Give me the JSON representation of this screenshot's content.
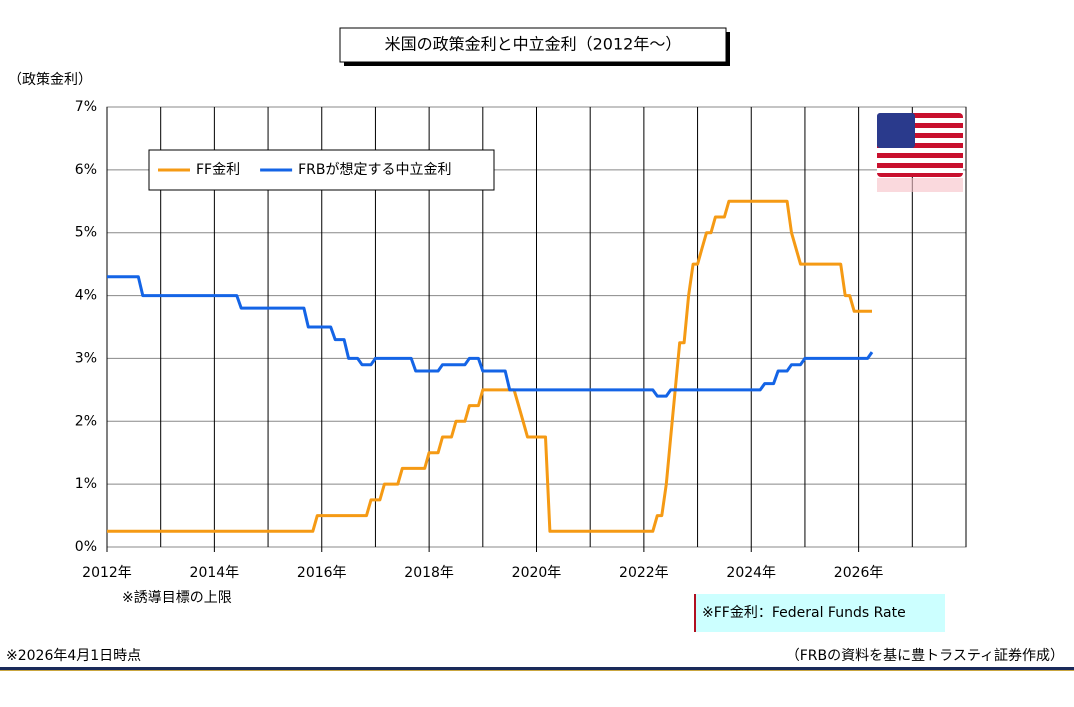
{
  "chart_data": {
    "type": "line",
    "title": "米国の政策金利と中立金利（2012年～）",
    "y_label": "（政策金利）",
    "note_below_axis": "※誘導目標の上限",
    "definition_note": "※FF金利：Federal Funds Rate",
    "footer_left": "※2026年4月1日時点",
    "footer_right": "（FRBの資料を基に豊トラスティ証券作成）",
    "xlim": [
      2012,
      2028
    ],
    "xticks": [
      {
        "value": 2012,
        "label": "2012年"
      },
      {
        "value": 2014,
        "label": "2014年"
      },
      {
        "value": 2016,
        "label": "2016年"
      },
      {
        "value": 2018,
        "label": "2018年"
      },
      {
        "value": 2020,
        "label": "2020年"
      },
      {
        "value": 2022,
        "label": "2022年"
      },
      {
        "value": 2024,
        "label": "2024年"
      },
      {
        "value": 2026,
        "label": "2026年"
      }
    ],
    "x_minor_ticks": [
      2013,
      2015,
      2017,
      2019,
      2021,
      2023,
      2025,
      2027,
      2028
    ],
    "ylim": [
      0,
      7
    ],
    "yticks": [
      {
        "value": 0,
        "label": "0%"
      },
      {
        "value": 1,
        "label": "1%"
      },
      {
        "value": 2,
        "label": "2%"
      },
      {
        "value": 3,
        "label": "3%"
      },
      {
        "value": 4,
        "label": "4%"
      },
      {
        "value": 5,
        "label": "5%"
      },
      {
        "value": 6,
        "label": "6%"
      },
      {
        "value": 7,
        "label": "7%"
      }
    ],
    "grid": true,
    "legend_position": "upper left",
    "series": [
      {
        "name": "FF金利",
        "color": "#f59a14",
        "x": [
          2012.0,
          2015.833,
          2015.917,
          2016.833,
          2016.917,
          2017.083,
          2017.167,
          2017.417,
          2017.5,
          2017.917,
          2018.0,
          2018.167,
          2018.25,
          2018.417,
          2018.5,
          2018.667,
          2018.75,
          2018.917,
          2019.0,
          2019.583,
          2019.667,
          2019.75,
          2019.833,
          2020.167,
          2020.25,
          2022.167,
          2022.25,
          2022.333,
          2022.417,
          2022.5,
          2022.583,
          2022.667,
          2022.75,
          2022.833,
          2022.917,
          2023.0,
          2023.083,
          2023.167,
          2023.25,
          2023.333,
          2023.5,
          2023.583,
          2024.667,
          2024.75,
          2024.833,
          2024.917,
          2025.667,
          2025.75,
          2025.833,
          2025.917,
          2026.25
        ],
        "values": [
          0.25,
          0.25,
          0.5,
          0.5,
          0.75,
          0.75,
          1.0,
          1.0,
          1.25,
          1.25,
          1.5,
          1.5,
          1.75,
          1.75,
          2.0,
          2.0,
          2.25,
          2.25,
          2.5,
          2.5,
          2.25,
          2.0,
          1.75,
          1.75,
          0.25,
          0.25,
          0.5,
          0.5,
          1.0,
          1.75,
          2.5,
          3.25,
          3.25,
          4.0,
          4.5,
          4.5,
          4.75,
          5.0,
          5.0,
          5.25,
          5.25,
          5.5,
          5.5,
          5.0,
          4.75,
          4.5,
          4.5,
          4.0,
          4.0,
          3.75,
          3.75
        ]
      },
      {
        "name": "FRBが想定する中立金利",
        "color": "#1464e6",
        "x": [
          2012.0,
          2012.583,
          2012.667,
          2014.417,
          2014.5,
          2015.667,
          2015.75,
          2016.167,
          2016.25,
          2016.417,
          2016.5,
          2016.667,
          2016.75,
          2016.917,
          2017.0,
          2017.667,
          2017.75,
          2018.167,
          2018.25,
          2018.667,
          2018.75,
          2018.917,
          2019.0,
          2019.417,
          2019.5,
          2022.167,
          2022.25,
          2022.417,
          2022.5,
          2024.167,
          2024.25,
          2024.417,
          2024.5,
          2024.667,
          2024.75,
          2024.917,
          2025.0,
          2026.167,
          2026.25
        ],
        "values": [
          4.3,
          4.3,
          4.0,
          4.0,
          3.8,
          3.8,
          3.5,
          3.5,
          3.3,
          3.3,
          3.0,
          3.0,
          2.9,
          2.9,
          3.0,
          3.0,
          2.8,
          2.8,
          2.9,
          2.9,
          3.0,
          3.0,
          2.8,
          2.8,
          2.5,
          2.5,
          2.4,
          2.4,
          2.5,
          2.5,
          2.6,
          2.6,
          2.8,
          2.8,
          2.9,
          2.9,
          3.0,
          3.0,
          3.1
        ]
      }
    ]
  }
}
